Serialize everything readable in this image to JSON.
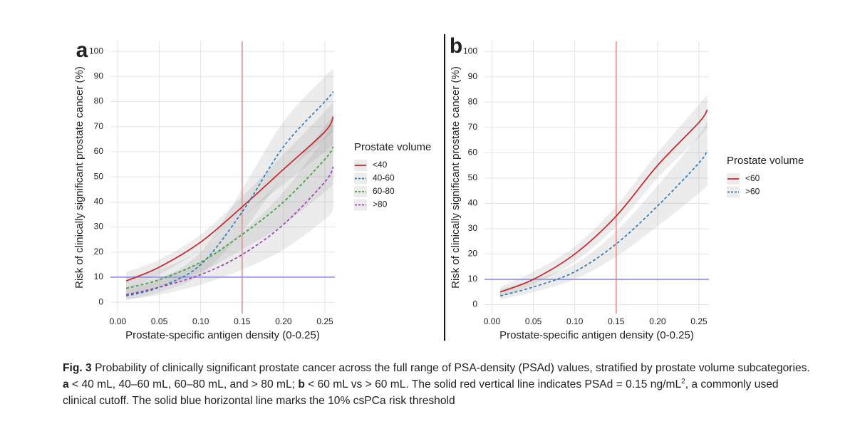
{
  "chart_data": [
    {
      "type": "line",
      "panel_label": "a",
      "y_label": "Risk of clinically significant prostate cancer (%)",
      "x_label": "Prostate-specific antigen density (0-0.25)",
      "legend_title": "Prostate volume",
      "legend": "right",
      "grid": true,
      "x": [
        0.01,
        0.05,
        0.1,
        0.15,
        0.2,
        0.25,
        0.26
      ],
      "xlim": [
        -0.009,
        0.262
      ],
      "ylim": [
        -4.5,
        104
      ],
      "xticks": [
        {
          "value": 0,
          "label": "0.00"
        },
        0.05,
        {
          "value": 0.1,
          "label": "0.10"
        },
        0.15,
        {
          "value": 0.2,
          "label": "0.20"
        },
        0.25
      ],
      "yticks": [
        0,
        10,
        20,
        30,
        40,
        50,
        60,
        70,
        80,
        90,
        100
      ],
      "vline": {
        "value": 0.15,
        "color": "#e88a8a"
      },
      "hline": {
        "value": 10,
        "color": "#8f8fe6"
      },
      "series": [
        {
          "name": "<40",
          "color": "#cc2229",
          "linestyle": "solid",
          "values": [
            8.5,
            14,
            24,
            38,
            53,
            68,
            74
          ],
          "lower": [
            5,
            11,
            21,
            34,
            47,
            60,
            63
          ],
          "upper": [
            12,
            17,
            27,
            42,
            59,
            76,
            80
          ]
        },
        {
          "name": "40-60",
          "color": "#2b7bba",
          "linestyle": "dashed",
          "values": [
            2.5,
            6,
            15,
            36,
            62,
            80,
            84
          ],
          "lower": [
            1,
            4,
            11,
            28,
            50,
            65,
            68
          ],
          "upper": [
            5,
            9,
            20,
            45,
            72,
            90,
            93
          ]
        },
        {
          "name": "60-80",
          "color": "#3a9e3a",
          "linestyle": "dashed",
          "values": [
            5.5,
            9,
            16,
            27,
            40,
            57,
            62
          ],
          "lower": [
            3,
            6,
            12,
            21,
            31,
            44,
            47
          ],
          "upper": [
            10,
            13,
            21,
            34,
            50,
            70,
            75
          ]
        },
        {
          "name": ">80",
          "color": "#9a3fb0",
          "linestyle": "dashed",
          "values": [
            3,
            6,
            11,
            19,
            31,
            48,
            54
          ],
          "lower": [
            1,
            3,
            7,
            13,
            21,
            33,
            37
          ],
          "upper": [
            6,
            10,
            16,
            28,
            44,
            66,
            72
          ]
        }
      ]
    },
    {
      "type": "line",
      "panel_label": "b",
      "y_label": "Risk of clinically significant prostate cancer (%)",
      "x_label": "Prostate-specific antigen density (0-0.25)",
      "legend_title": "Prostate volume",
      "legend": "right",
      "grid": true,
      "x": [
        0.01,
        0.05,
        0.1,
        0.15,
        0.2,
        0.25,
        0.26
      ],
      "xlim": [
        -0.009,
        0.262
      ],
      "ylim": [
        -3.5,
        104
      ],
      "xticks": [
        {
          "value": 0,
          "label": "0.00"
        },
        0.05,
        {
          "value": 0.1,
          "label": "0.10"
        },
        0.15,
        {
          "value": 0.2,
          "label": "0.20"
        },
        0.25
      ],
      "yticks": [
        0,
        10,
        20,
        30,
        40,
        50,
        60,
        70,
        80,
        90,
        100
      ],
      "vline": {
        "value": 0.15,
        "color": "#e88a8a"
      },
      "hline": {
        "value": 10,
        "color": "#8f8fe6"
      },
      "series": [
        {
          "name": "<60",
          "color": "#cc2229",
          "linestyle": "solid",
          "values": [
            5,
            10,
            20,
            35,
            55,
            72,
            77
          ],
          "lower": [
            3,
            8,
            17,
            31,
            50,
            66,
            70
          ],
          "upper": [
            7,
            13,
            23,
            39,
            60,
            79,
            83
          ]
        },
        {
          "name": ">60",
          "color": "#2b7bba",
          "linestyle": "dashed",
          "values": [
            3.5,
            7,
            13,
            24,
            39,
            56,
            61
          ],
          "lower": [
            2,
            5,
            10,
            19,
            31,
            44,
            47
          ],
          "upper": [
            6,
            10,
            16,
            29,
            47,
            67,
            73
          ]
        }
      ]
    }
  ],
  "caption": [
    {
      "text": "Fig. 3",
      "bold": true
    },
    {
      "text": " Probability of clinically significant prostate cancer across the full range of PSA-density (PSAd) values, stratified by prostate volume subcategories. "
    },
    {
      "text": "a",
      "bold": true
    },
    {
      "text": " < 40 mL, 40–60 mL, 60–80 mL, and > 80 mL; "
    },
    {
      "text": "b",
      "bold": true
    },
    {
      "text": " < 60 mL vs > 60 mL. The solid red vertical line indicates PSAd = 0.15 ng/mL"
    },
    {
      "text": "2",
      "sup": true
    },
    {
      "text": ", a commonly used clinical cutoff. The solid blue horizontal line marks the 10% csPCa risk threshold"
    }
  ]
}
